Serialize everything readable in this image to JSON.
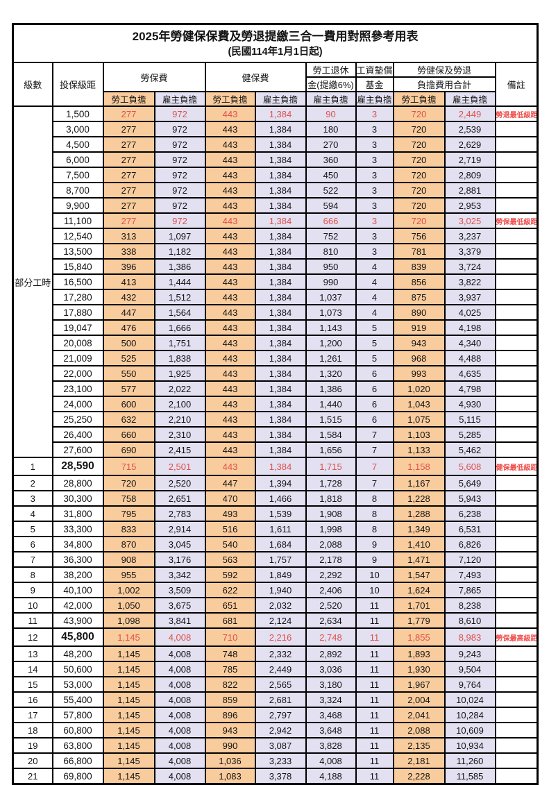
{
  "title": "2025年勞健保保費及勞退提繳三合一費用對照參考用表",
  "subtitle": "(民國114年1月1日起)",
  "colors": {
    "worker_bg": "#f9cc9d",
    "employer_bg": "#e2e0f1",
    "highlight_red": "#e0504a",
    "note_red": "#f04e4c",
    "border": "#000000"
  },
  "header": {
    "level": "級數",
    "bracket": "投保級距",
    "labor_fee": "勞保費",
    "health_fee": "健保費",
    "pension_line1": "勞工退休",
    "pension_line2": "金(提繳6%)",
    "wage_fund_line1": "工資墊償",
    "wage_fund_line2": "基金",
    "total_line1": "勞健保及勞退",
    "total_line2": "負擔費用合計",
    "worker": "勞工負擔",
    "employer": "雇主負擔",
    "note": "備註"
  },
  "table": {
    "part_time_label": "部分工時",
    "rows": [
      {
        "pt": true,
        "lv": "",
        "base": "1,500",
        "v": [
          "277",
          "972",
          "443",
          "1,384",
          "90",
          "3",
          "720",
          "2,449"
        ],
        "note": "勞退最低級距",
        "red": true,
        "em": false
      },
      {
        "pt": true,
        "lv": "",
        "base": "3,000",
        "v": [
          "277",
          "972",
          "443",
          "1,384",
          "180",
          "3",
          "720",
          "2,539"
        ],
        "note": "",
        "red": false,
        "em": false
      },
      {
        "pt": true,
        "lv": "",
        "base": "4,500",
        "v": [
          "277",
          "972",
          "443",
          "1,384",
          "270",
          "3",
          "720",
          "2,629"
        ],
        "note": "",
        "red": false,
        "em": false
      },
      {
        "pt": true,
        "lv": "",
        "base": "6,000",
        "v": [
          "277",
          "972",
          "443",
          "1,384",
          "360",
          "3",
          "720",
          "2,719"
        ],
        "note": "",
        "red": false,
        "em": false
      },
      {
        "pt": true,
        "lv": "",
        "base": "7,500",
        "v": [
          "277",
          "972",
          "443",
          "1,384",
          "450",
          "3",
          "720",
          "2,809"
        ],
        "note": "",
        "red": false,
        "em": false
      },
      {
        "pt": true,
        "lv": "",
        "base": "8,700",
        "v": [
          "277",
          "972",
          "443",
          "1,384",
          "522",
          "3",
          "720",
          "2,881"
        ],
        "note": "",
        "red": false,
        "em": false
      },
      {
        "pt": true,
        "lv": "",
        "base": "9,900",
        "v": [
          "277",
          "972",
          "443",
          "1,384",
          "594",
          "3",
          "720",
          "2,953"
        ],
        "note": "",
        "red": false,
        "em": false
      },
      {
        "pt": true,
        "lv": "",
        "base": "11,100",
        "v": [
          "277",
          "972",
          "443",
          "1,384",
          "666",
          "3",
          "720",
          "3,025"
        ],
        "note": "勞保最低級距",
        "red": true,
        "em": false
      },
      {
        "pt": true,
        "lv": "",
        "base": "12,540",
        "v": [
          "313",
          "1,097",
          "443",
          "1,384",
          "752",
          "3",
          "756",
          "3,237"
        ],
        "note": "",
        "red": false,
        "em": false
      },
      {
        "pt": true,
        "lv": "",
        "base": "13,500",
        "v": [
          "338",
          "1,182",
          "443",
          "1,384",
          "810",
          "3",
          "781",
          "3,379"
        ],
        "note": "",
        "red": false,
        "em": false
      },
      {
        "pt": true,
        "lv": "",
        "base": "15,840",
        "v": [
          "396",
          "1,386",
          "443",
          "1,384",
          "950",
          "4",
          "839",
          "3,724"
        ],
        "note": "",
        "red": false,
        "em": false
      },
      {
        "pt": true,
        "lv": "",
        "base": "16,500",
        "v": [
          "413",
          "1,444",
          "443",
          "1,384",
          "990",
          "4",
          "856",
          "3,822"
        ],
        "note": "",
        "red": false,
        "em": false
      },
      {
        "pt": true,
        "lv": "",
        "base": "17,280",
        "v": [
          "432",
          "1,512",
          "443",
          "1,384",
          "1,037",
          "4",
          "875",
          "3,937"
        ],
        "note": "",
        "red": false,
        "em": false
      },
      {
        "pt": true,
        "lv": "",
        "base": "17,880",
        "v": [
          "447",
          "1,564",
          "443",
          "1,384",
          "1,073",
          "4",
          "890",
          "4,025"
        ],
        "note": "",
        "red": false,
        "em": false
      },
      {
        "pt": true,
        "lv": "",
        "base": "19,047",
        "v": [
          "476",
          "1,666",
          "443",
          "1,384",
          "1,143",
          "5",
          "919",
          "4,198"
        ],
        "note": "",
        "red": false,
        "em": false
      },
      {
        "pt": true,
        "lv": "",
        "base": "20,008",
        "v": [
          "500",
          "1,751",
          "443",
          "1,384",
          "1,200",
          "5",
          "943",
          "4,340"
        ],
        "note": "",
        "red": false,
        "em": false
      },
      {
        "pt": true,
        "lv": "",
        "base": "21,009",
        "v": [
          "525",
          "1,838",
          "443",
          "1,384",
          "1,261",
          "5",
          "968",
          "4,488"
        ],
        "note": "",
        "red": false,
        "em": false
      },
      {
        "pt": true,
        "lv": "",
        "base": "22,000",
        "v": [
          "550",
          "1,925",
          "443",
          "1,384",
          "1,320",
          "6",
          "993",
          "4,635"
        ],
        "note": "",
        "red": false,
        "em": false
      },
      {
        "pt": true,
        "lv": "",
        "base": "23,100",
        "v": [
          "577",
          "2,022",
          "443",
          "1,384",
          "1,386",
          "6",
          "1,020",
          "4,798"
        ],
        "note": "",
        "red": false,
        "em": false
      },
      {
        "pt": true,
        "lv": "",
        "base": "24,000",
        "v": [
          "600",
          "2,100",
          "443",
          "1,384",
          "1,440",
          "6",
          "1,043",
          "4,930"
        ],
        "note": "",
        "red": false,
        "em": false
      },
      {
        "pt": true,
        "lv": "",
        "base": "25,250",
        "v": [
          "632",
          "2,210",
          "443",
          "1,384",
          "1,515",
          "6",
          "1,075",
          "5,115"
        ],
        "note": "",
        "red": false,
        "em": false
      },
      {
        "pt": true,
        "lv": "",
        "base": "26,400",
        "v": [
          "660",
          "2,310",
          "443",
          "1,384",
          "1,584",
          "7",
          "1,103",
          "5,285"
        ],
        "note": "",
        "red": false,
        "em": false
      },
      {
        "pt": true,
        "lv": "",
        "base": "27,600",
        "v": [
          "690",
          "2,415",
          "443",
          "1,384",
          "1,656",
          "7",
          "1,133",
          "5,462"
        ],
        "note": "",
        "red": false,
        "em": false
      },
      {
        "pt": false,
        "lv": "1",
        "base": "28,590",
        "v": [
          "715",
          "2,501",
          "443",
          "1,384",
          "1,715",
          "7",
          "1,158",
          "5,608"
        ],
        "note": "健保最低級距",
        "red": true,
        "em": true
      },
      {
        "pt": false,
        "lv": "2",
        "base": "28,800",
        "v": [
          "720",
          "2,520",
          "447",
          "1,394",
          "1,728",
          "7",
          "1,167",
          "5,649"
        ],
        "note": "",
        "red": false,
        "em": false
      },
      {
        "pt": false,
        "lv": "3",
        "base": "30,300",
        "v": [
          "758",
          "2,651",
          "470",
          "1,466",
          "1,818",
          "8",
          "1,228",
          "5,943"
        ],
        "note": "",
        "red": false,
        "em": false
      },
      {
        "pt": false,
        "lv": "4",
        "base": "31,800",
        "v": [
          "795",
          "2,783",
          "493",
          "1,539",
          "1,908",
          "8",
          "1,288",
          "6,238"
        ],
        "note": "",
        "red": false,
        "em": false
      },
      {
        "pt": false,
        "lv": "5",
        "base": "33,300",
        "v": [
          "833",
          "2,914",
          "516",
          "1,611",
          "1,998",
          "8",
          "1,349",
          "6,531"
        ],
        "note": "",
        "red": false,
        "em": false
      },
      {
        "pt": false,
        "lv": "6",
        "base": "34,800",
        "v": [
          "870",
          "3,045",
          "540",
          "1,684",
          "2,088",
          "9",
          "1,410",
          "6,826"
        ],
        "note": "",
        "red": false,
        "em": false
      },
      {
        "pt": false,
        "lv": "7",
        "base": "36,300",
        "v": [
          "908",
          "3,176",
          "563",
          "1,757",
          "2,178",
          "9",
          "1,471",
          "7,120"
        ],
        "note": "",
        "red": false,
        "em": false
      },
      {
        "pt": false,
        "lv": "8",
        "base": "38,200",
        "v": [
          "955",
          "3,342",
          "592",
          "1,849",
          "2,292",
          "10",
          "1,547",
          "7,493"
        ],
        "note": "",
        "red": false,
        "em": false
      },
      {
        "pt": false,
        "lv": "9",
        "base": "40,100",
        "v": [
          "1,002",
          "3,509",
          "622",
          "1,940",
          "2,406",
          "10",
          "1,624",
          "7,865"
        ],
        "note": "",
        "red": false,
        "em": false
      },
      {
        "pt": false,
        "lv": "10",
        "base": "42,000",
        "v": [
          "1,050",
          "3,675",
          "651",
          "2,032",
          "2,520",
          "11",
          "1,701",
          "8,238"
        ],
        "note": "",
        "red": false,
        "em": false
      },
      {
        "pt": false,
        "lv": "11",
        "base": "43,900",
        "v": [
          "1,098",
          "3,841",
          "681",
          "2,124",
          "2,634",
          "11",
          "1,779",
          "8,610"
        ],
        "note": "",
        "red": false,
        "em": false
      },
      {
        "pt": false,
        "lv": "12",
        "base": "45,800",
        "v": [
          "1,145",
          "4,008",
          "710",
          "2,216",
          "2,748",
          "11",
          "1,855",
          "8,983"
        ],
        "note": "勞保最高級距",
        "red": true,
        "em": true
      },
      {
        "pt": false,
        "lv": "13",
        "base": "48,200",
        "v": [
          "1,145",
          "4,008",
          "748",
          "2,332",
          "2,892",
          "11",
          "1,893",
          "9,243"
        ],
        "note": "",
        "red": false,
        "em": false
      },
      {
        "pt": false,
        "lv": "14",
        "base": "50,600",
        "v": [
          "1,145",
          "4,008",
          "785",
          "2,449",
          "3,036",
          "11",
          "1,930",
          "9,504"
        ],
        "note": "",
        "red": false,
        "em": false
      },
      {
        "pt": false,
        "lv": "15",
        "base": "53,000",
        "v": [
          "1,145",
          "4,008",
          "822",
          "2,565",
          "3,180",
          "11",
          "1,967",
          "9,764"
        ],
        "note": "",
        "red": false,
        "em": false
      },
      {
        "pt": false,
        "lv": "16",
        "base": "55,400",
        "v": [
          "1,145",
          "4,008",
          "859",
          "2,681",
          "3,324",
          "11",
          "2,004",
          "10,024"
        ],
        "note": "",
        "red": false,
        "em": false
      },
      {
        "pt": false,
        "lv": "17",
        "base": "57,800",
        "v": [
          "1,145",
          "4,008",
          "896",
          "2,797",
          "3,468",
          "11",
          "2,041",
          "10,284"
        ],
        "note": "",
        "red": false,
        "em": false
      },
      {
        "pt": false,
        "lv": "18",
        "base": "60,800",
        "v": [
          "1,145",
          "4,008",
          "943",
          "2,942",
          "3,648",
          "11",
          "2,088",
          "10,609"
        ],
        "note": "",
        "red": false,
        "em": false
      },
      {
        "pt": false,
        "lv": "19",
        "base": "63,800",
        "v": [
          "1,145",
          "4,008",
          "990",
          "3,087",
          "3,828",
          "11",
          "2,135",
          "10,934"
        ],
        "note": "",
        "red": false,
        "em": false
      },
      {
        "pt": false,
        "lv": "20",
        "base": "66,800",
        "v": [
          "1,145",
          "4,008",
          "1,036",
          "3,233",
          "4,008",
          "11",
          "2,181",
          "11,260"
        ],
        "note": "",
        "red": false,
        "em": false
      },
      {
        "pt": false,
        "lv": "21",
        "base": "69,800",
        "v": [
          "1,145",
          "4,008",
          "1,083",
          "3,378",
          "4,188",
          "11",
          "2,228",
          "11,585"
        ],
        "note": "",
        "red": false,
        "em": false
      }
    ]
  }
}
